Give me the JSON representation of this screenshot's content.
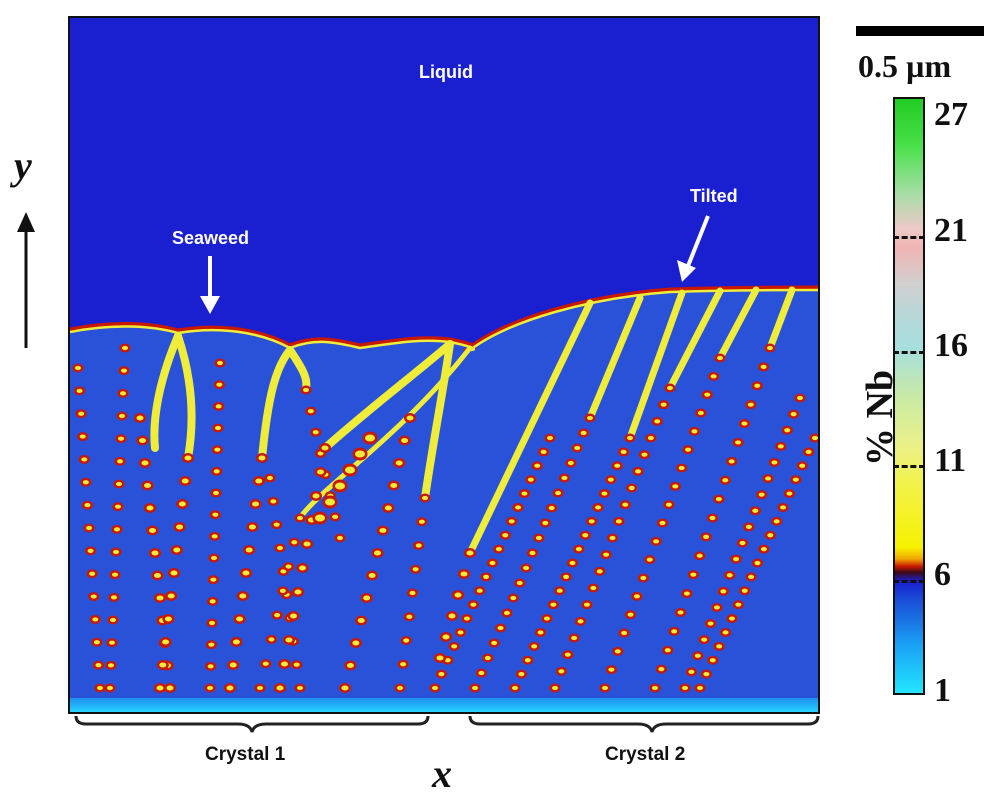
{
  "figure": {
    "labels": {
      "liquid": "Liquid",
      "seaweed": "Seaweed",
      "tilted": "Tilted",
      "crystal_1": "Crystal 1",
      "crystal_2": "Crystal 2"
    },
    "axes": {
      "y": "y",
      "x": "x"
    },
    "scale_bar": {
      "label": "0.5 µm"
    },
    "colorbar": {
      "title": "% Nb",
      "ticks": [
        "27",
        "21",
        "16",
        "11",
        "6",
        "1"
      ],
      "min": 1,
      "max": 27
    },
    "colors": {
      "liquid": "#1a1fd0",
      "solid": "#2a52d8",
      "segregant": "#f0ec3a",
      "interface": "#c81800",
      "substrate": "#22d0ff"
    }
  }
}
